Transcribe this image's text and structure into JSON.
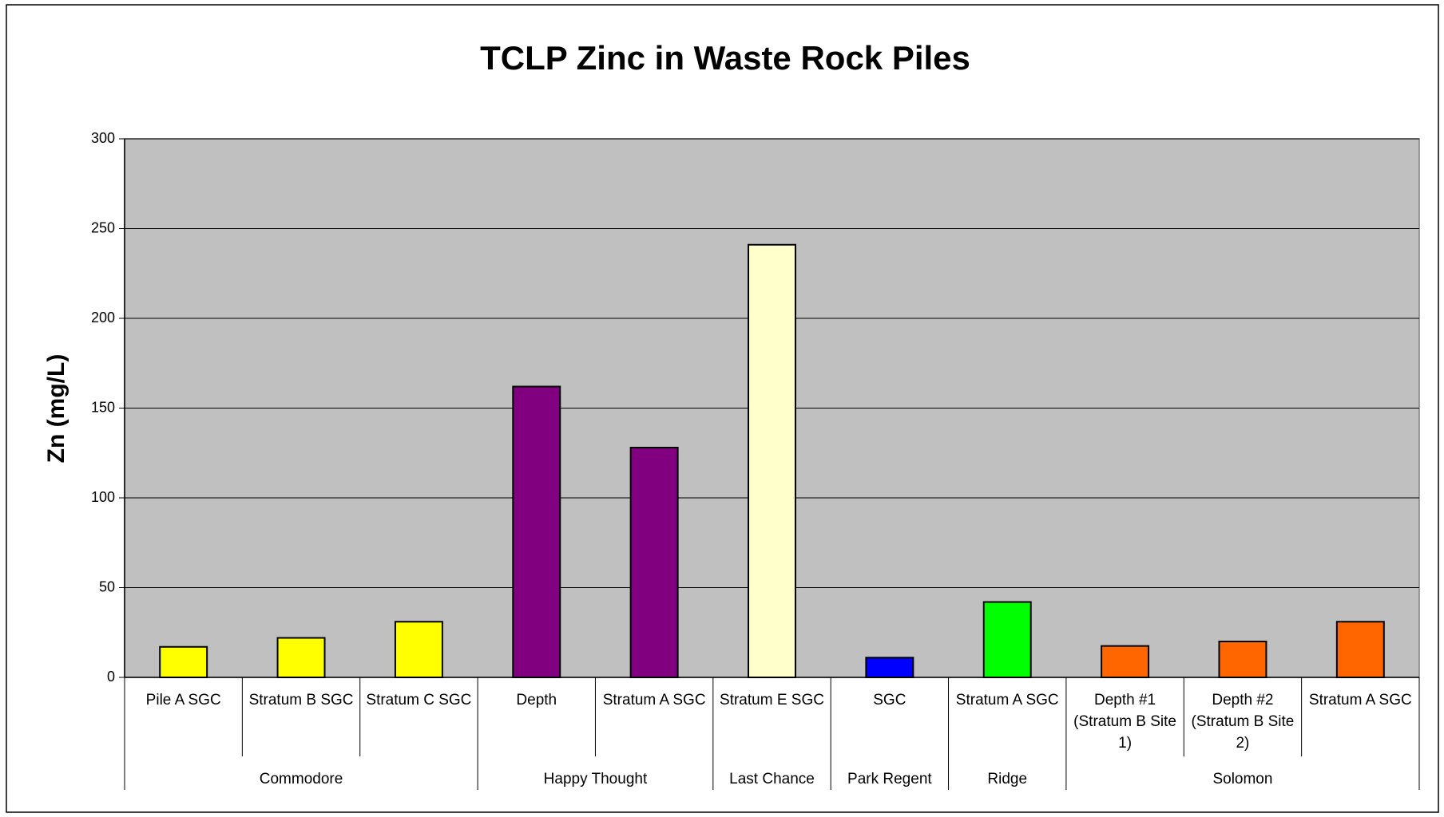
{
  "chart_data": {
    "type": "bar",
    "title": "TCLP Zinc in Waste Rock Piles",
    "y_label": "Zn (mg/L)",
    "categories": [
      "Pile A SGC",
      "Stratum B SGC",
      "Stratum C SGC",
      "Depth",
      "Stratum A SGC",
      "Stratum E SGC",
      "SGC",
      "Stratum A SGC",
      "Depth #1 (Stratum B Site 1)",
      "Depth #2 (Stratum B Site 2)",
      "Stratum A SGC"
    ],
    "groups": [
      {
        "name": "Commodore",
        "count": 3
      },
      {
        "name": "Happy Thought",
        "count": 2
      },
      {
        "name": "Last Chance",
        "count": 1
      },
      {
        "name": "Park Regent",
        "count": 1
      },
      {
        "name": "Ridge",
        "count": 1
      },
      {
        "name": "Solomon",
        "count": 3
      }
    ],
    "values": [
      17,
      22,
      31,
      162,
      128,
      241,
      11,
      42,
      17.5,
      20,
      31
    ],
    "colors": [
      "#ffff00",
      "#ffff00",
      "#ffff00",
      "#800080",
      "#800080",
      "#ffffcc",
      "#0000ff",
      "#00ff00",
      "#ff6600",
      "#ff6600",
      "#ff6600"
    ],
    "ylim": [
      0,
      300
    ],
    "yticks": [
      0,
      50,
      100,
      150,
      200,
      250,
      300
    ],
    "grid": true,
    "plot_background": "#c0c0c0"
  }
}
